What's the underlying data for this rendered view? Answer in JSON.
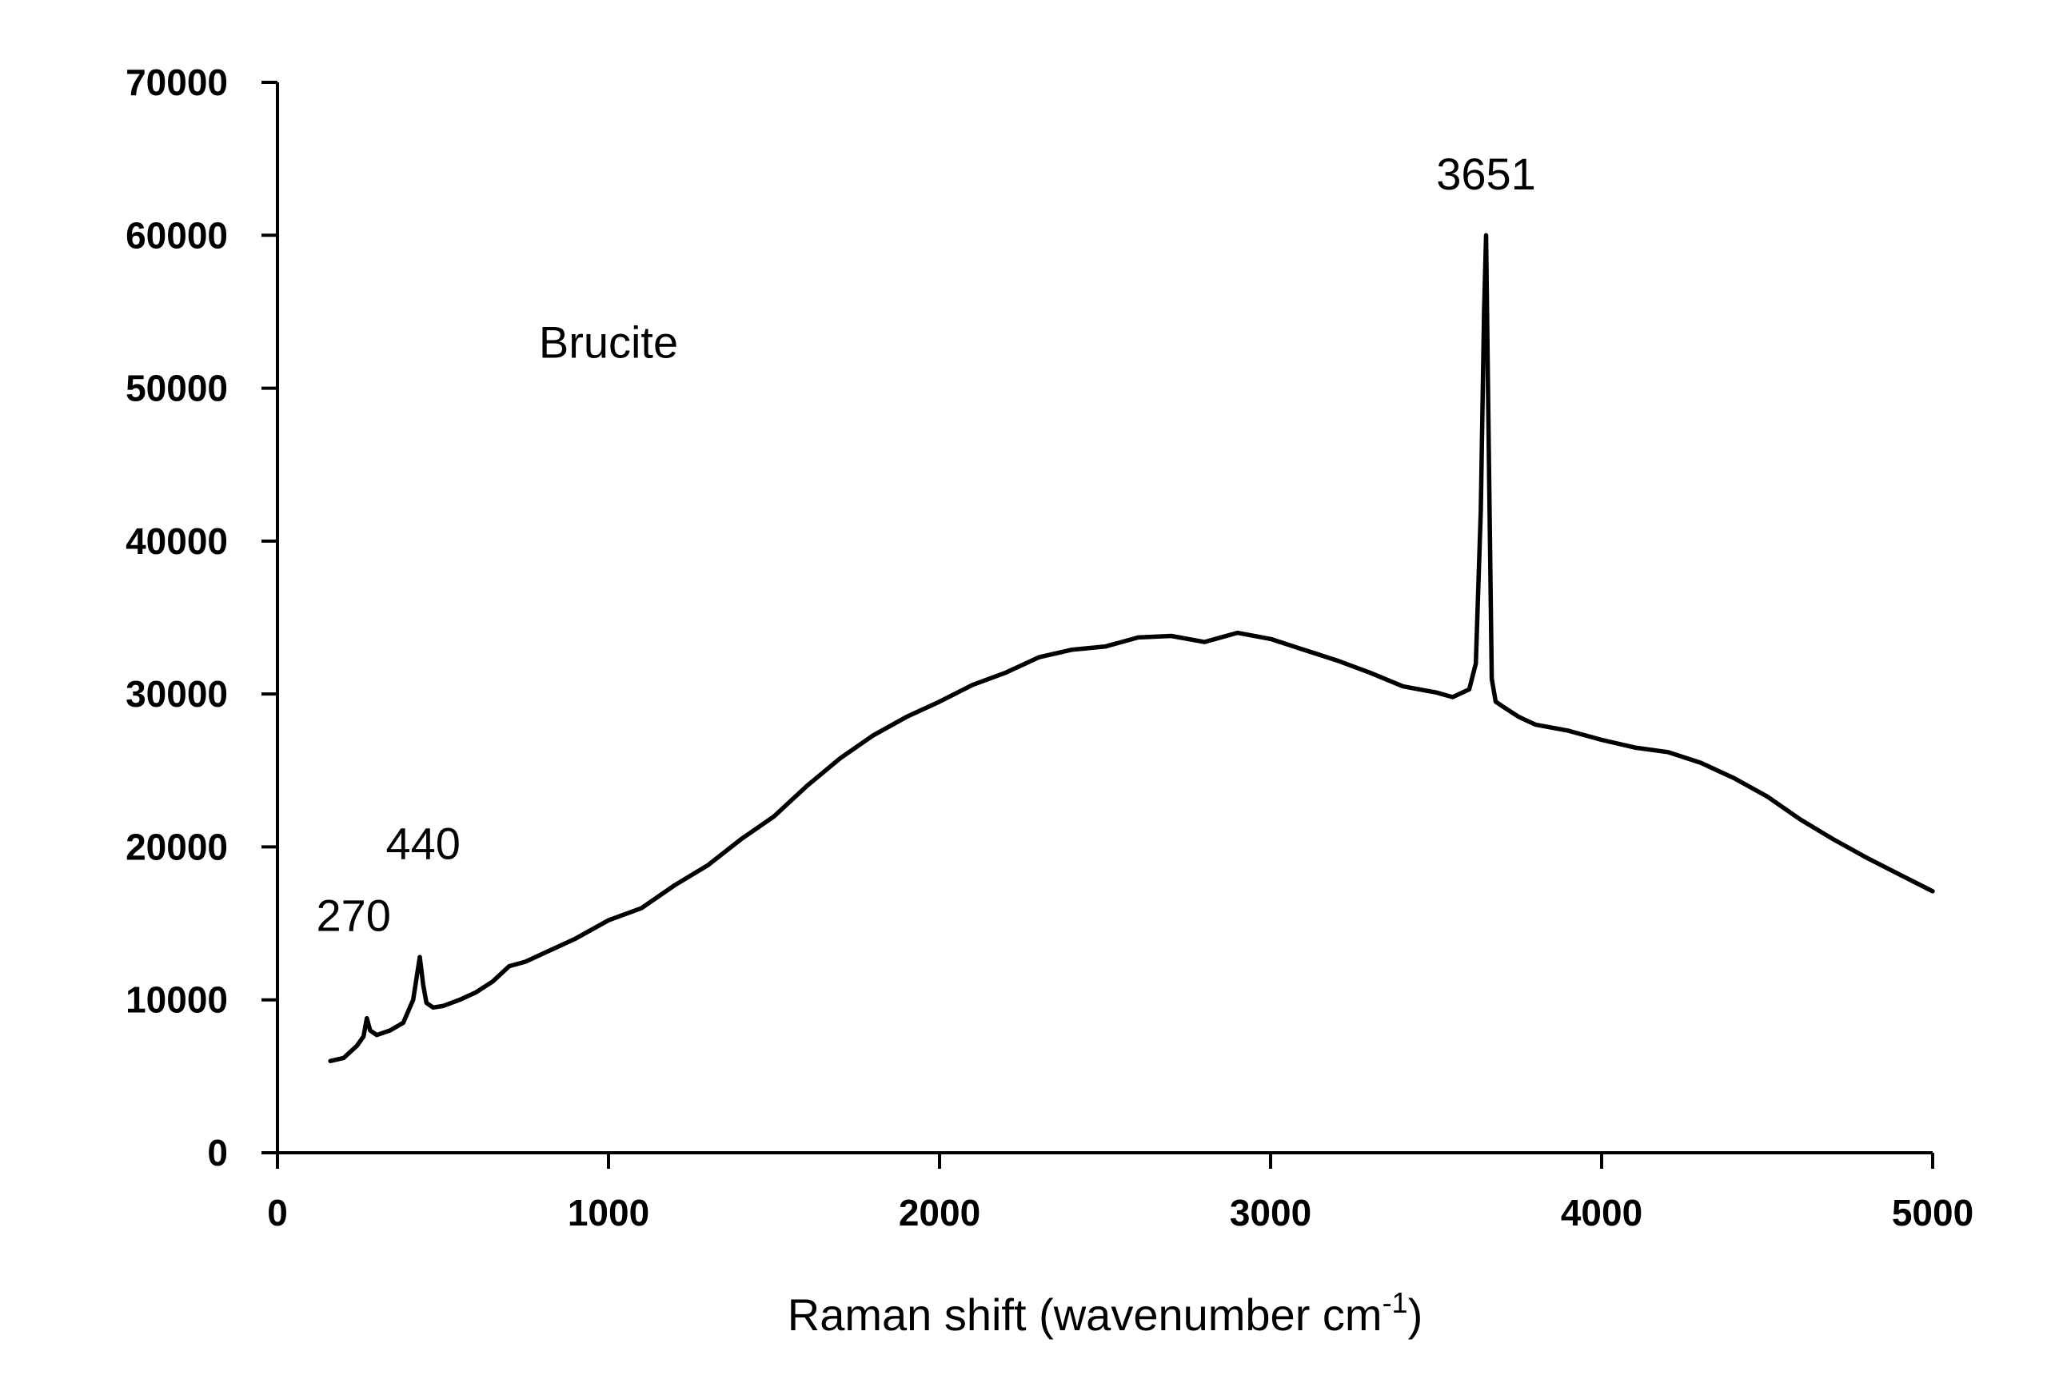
{
  "chart_data": {
    "type": "line",
    "title": "",
    "xlabel": "Raman shift (wavenumber cm",
    "xlabel_sup": "-1",
    "xlabel_close": ")",
    "ylabel": "",
    "xlim": [
      0,
      5000
    ],
    "ylim": [
      0,
      70000
    ],
    "x_ticks": [
      0,
      1000,
      2000,
      3000,
      4000,
      5000
    ],
    "x_tick_labels": [
      "0",
      "1000",
      "2000",
      "3000",
      "4000",
      "5000"
    ],
    "y_ticks": [
      0,
      10000,
      20000,
      30000,
      40000,
      50000,
      60000,
      70000
    ],
    "y_tick_labels": [
      "0",
      "10000",
      "20000",
      "30000",
      "40000",
      "50000",
      "60000",
      "70000"
    ],
    "grid": false,
    "legend": "none",
    "series_color": "#000000",
    "annotations": [
      {
        "text": "Brucite",
        "x": 1000,
        "y": 52000
      },
      {
        "text": "270",
        "x": 230,
        "y": 14500
      },
      {
        "text": "440",
        "x": 440,
        "y": 19200
      },
      {
        "text": "3651",
        "x": 3651,
        "y": 63000
      }
    ],
    "series": [
      {
        "x": [
          160,
          200,
          240,
          260,
          270,
          280,
          300,
          340,
          380,
          410,
          430,
          440,
          450,
          470,
          500,
          550,
          600,
          650,
          700,
          750,
          800,
          900,
          1000,
          1100,
          1200,
          1300,
          1400,
          1500,
          1600,
          1700,
          1800,
          1900,
          2000,
          2100,
          2200,
          2300,
          2400,
          2500,
          2600,
          2700,
          2800,
          2900,
          3000,
          3100,
          3200,
          3300,
          3400,
          3500,
          3550,
          3600,
          3620,
          3635,
          3645,
          3651,
          3658,
          3668,
          3680,
          3700,
          3750,
          3800,
          3900,
          4000,
          4100,
          4200,
          4300,
          4400,
          4500,
          4600,
          4700,
          4800,
          4900,
          5000
        ],
        "y": [
          6000,
          6200,
          7000,
          7600,
          8800,
          8000,
          7700,
          8000,
          8500,
          10000,
          12800,
          11000,
          9800,
          9500,
          9600,
          10000,
          10500,
          11200,
          12200,
          12500,
          13000,
          14000,
          15200,
          16000,
          17500,
          18800,
          20500,
          22000,
          24000,
          25800,
          27300,
          28500,
          29500,
          30600,
          31400,
          32400,
          32900,
          33100,
          33700,
          33800,
          33400,
          34000,
          33600,
          32900,
          32200,
          31400,
          30500,
          30100,
          29800,
          30300,
          32000,
          42000,
          55000,
          60000,
          48000,
          31000,
          29500,
          29200,
          28500,
          28000,
          27600,
          27000,
          26500,
          26200,
          25500,
          24500,
          23300,
          21800,
          20500,
          19300,
          18200,
          17100
        ]
      }
    ]
  }
}
